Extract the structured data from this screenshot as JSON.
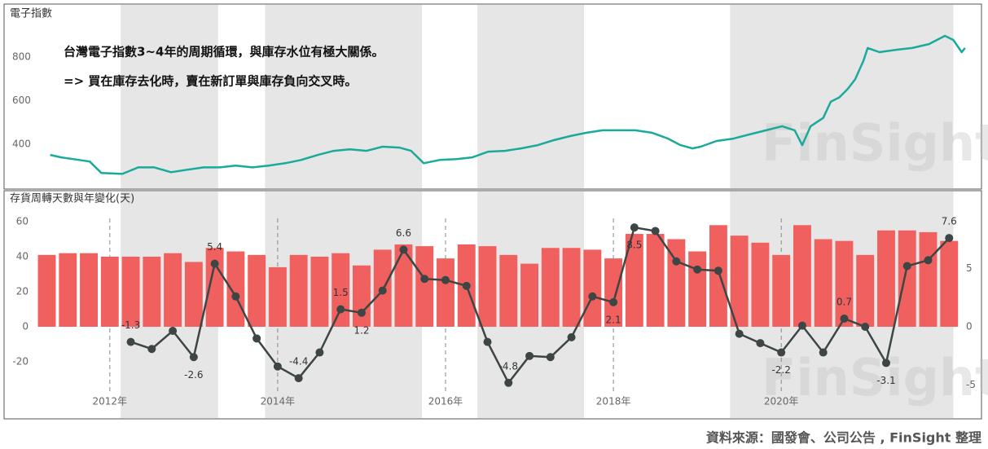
{
  "chart_data": [
    {
      "type": "line",
      "title": "電子指數",
      "annotations": [
        "台灣電子指數3~4年的周期循環，與庫存水位有極大關係。",
        "=> 買在庫存去化時，賣在新訂單與庫存負向交叉時。"
      ],
      "x": [
        2011.29,
        2011.42,
        2011.56,
        2011.76,
        2011.9,
        2012.15,
        2012.34,
        2012.53,
        2012.73,
        2012.92,
        2013.12,
        2013.31,
        2013.5,
        2013.7,
        2013.89,
        2014.09,
        2014.28,
        2014.48,
        2014.67,
        2014.86,
        2015.06,
        2015.25,
        2015.45,
        2015.59,
        2015.74,
        2015.93,
        2016.13,
        2016.32,
        2016.51,
        2016.71,
        2016.9,
        2017.1,
        2017.29,
        2017.49,
        2017.68,
        2017.87,
        2018.07,
        2018.26,
        2018.46,
        2018.65,
        2018.8,
        2018.94,
        2019.04,
        2019.23,
        2019.43,
        2019.62,
        2019.82,
        2020.01,
        2020.16,
        2020.25,
        2020.35,
        2020.5,
        2020.59,
        2020.69,
        2020.79,
        2020.88,
        2020.98,
        2021.03,
        2021.17,
        2021.37,
        2021.56,
        2021.76,
        2021.95,
        2022.05,
        2022.15,
        2022.19
      ],
      "values": [
        351,
        340,
        332,
        321,
        268,
        264,
        294,
        294,
        272,
        283,
        294,
        294,
        302,
        294,
        302,
        313,
        328,
        351,
        370,
        377,
        370,
        389,
        385,
        370,
        313,
        328,
        332,
        340,
        366,
        370,
        381,
        396,
        419,
        438,
        453,
        464,
        464,
        464,
        453,
        426,
        396,
        381,
        389,
        415,
        426,
        445,
        464,
        483,
        464,
        396,
        483,
        521,
        596,
        615,
        653,
        698,
        785,
        842,
        823,
        834,
        842,
        860,
        898,
        879,
        823,
        842
      ],
      "color": "#1aaa9b",
      "xlim": [
        2011.08,
        2022.24
      ],
      "ylim": [
        200,
        1040
      ],
      "yticks": [
        400,
        600,
        800
      ],
      "bands": [
        [
          2012.13,
          2013.29
        ],
        [
          2013.85,
          2015.72
        ],
        [
          2016.38,
          2017.65
        ],
        [
          2019.39,
          2022.05
        ]
      ],
      "watermark": "FinSight"
    },
    {
      "type": "bar",
      "title": "存貨周轉天數與年變化(天)",
      "x": [
        2011.25,
        2011.5,
        2011.75,
        2012.0,
        2012.25,
        2012.5,
        2012.75,
        2013.0,
        2013.25,
        2013.5,
        2013.75,
        2014.0,
        2014.25,
        2014.5,
        2014.75,
        2015.0,
        2015.25,
        2015.5,
        2015.75,
        2016.0,
        2016.25,
        2016.5,
        2016.75,
        2017.0,
        2017.25,
        2017.5,
        2017.75,
        2018.0,
        2018.25,
        2018.5,
        2018.75,
        2019.0,
        2019.25,
        2019.5,
        2019.75,
        2020.0,
        2020.25,
        2020.5,
        2020.75,
        2021.0,
        2021.25,
        2021.5,
        2021.75,
        2022.0
      ],
      "series": [
        {
          "type": "bar",
          "color": "#f0605e",
          "values": [
            41,
            42,
            42,
            40,
            40,
            40,
            42,
            37,
            45,
            43,
            41,
            34,
            41,
            40,
            42,
            35,
            44,
            47,
            46,
            39,
            47,
            46,
            41,
            36,
            45,
            45,
            44,
            39,
            53,
            53,
            50,
            43,
            58,
            52,
            48,
            41,
            58,
            50,
            49,
            41,
            55,
            55,
            54,
            49
          ]
        },
        {
          "type": "line",
          "axis": "y2",
          "color": "#3d4545",
          "values": [
            null,
            null,
            null,
            null,
            -1.3,
            -1.9,
            -0.35,
            -2.6,
            5.4,
            2.6,
            -1.0,
            -3.4,
            -4.4,
            -2.2,
            1.5,
            1.2,
            3.1,
            6.6,
            4.1,
            4.0,
            3.5,
            -1.3,
            -4.8,
            -2.5,
            -2.6,
            -0.9,
            2.6,
            2.1,
            8.5,
            8.2,
            5.6,
            4.9,
            4.8,
            -0.6,
            -1.4,
            -2.2,
            0.1,
            -2.2,
            0.7,
            0.0,
            -3.1,
            5.2,
            5.7,
            7.6
          ],
          "value_labels": [
            null,
            null,
            null,
            null,
            "-1.3",
            null,
            null,
            "-2.6",
            "5.4",
            null,
            null,
            null,
            "-4.4",
            null,
            "1.5",
            "1.2",
            null,
            "6.6",
            null,
            null,
            null,
            null,
            "-4.8",
            null,
            null,
            null,
            null,
            "2.1",
            "8.5",
            null,
            null,
            null,
            null,
            null,
            null,
            "-2.2",
            null,
            null,
            "0.7",
            null,
            "-3.1",
            null,
            null,
            "7.6"
          ]
        }
      ],
      "xlim": [
        2011.08,
        2022.24
      ],
      "xticks": [
        {
          "value": 2012,
          "label": "2012年"
        },
        {
          "value": 2014,
          "label": "2014年"
        },
        {
          "value": 2016,
          "label": "2016年"
        },
        {
          "value": 2018,
          "label": "2018年"
        },
        {
          "value": 2020,
          "label": "2020年"
        }
      ],
      "ylim": [
        -40,
        70
      ],
      "yticks": [
        -20,
        0,
        20,
        40,
        60
      ],
      "y2lim": [
        -6,
        10.5
      ],
      "y2ticks": [
        -5,
        0,
        5
      ],
      "bands": [
        [
          2012.13,
          2013.29
        ],
        [
          2013.85,
          2015.72
        ],
        [
          2016.38,
          2017.65
        ],
        [
          2019.39,
          2022.05
        ]
      ],
      "watermark": "FinSight"
    }
  ],
  "source": "資料來源：國發會、公司公告 , FinSight 整理"
}
